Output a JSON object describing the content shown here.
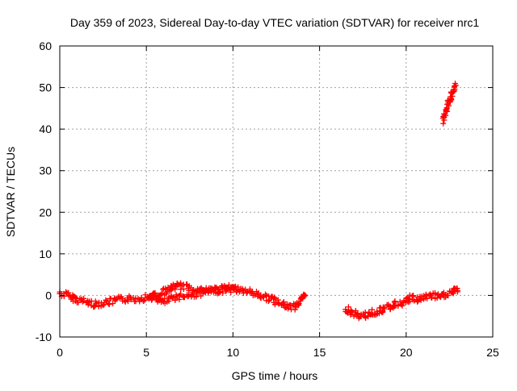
{
  "chart_data": {
    "type": "scatter",
    "title": "Day 359 of 2023, Sidereal Day-to-day VTEC variation (SDTVAR) for receiver nrc1",
    "xlabel": "GPS time / hours",
    "ylabel": "SDTVAR / TECUs",
    "xlim": [
      0,
      25
    ],
    "ylim": [
      -10,
      60
    ],
    "xticks": [
      0,
      5,
      10,
      15,
      20,
      25
    ],
    "yticks": [
      -10,
      0,
      10,
      20,
      30,
      40,
      50,
      60
    ],
    "grid": true,
    "marker": "+",
    "series": [
      {
        "name": "SDTVAR",
        "color": "#ff0000",
        "segments": [
          {
            "x": [
              0.0,
              0.5,
              1.0,
              1.5,
              2.0,
              2.5,
              3.0,
              3.5,
              4.0,
              4.5,
              5.0,
              5.5,
              5.8,
              6.2,
              6.5,
              7.0,
              7.5,
              8.0,
              8.5,
              9.0,
              9.5,
              10.0,
              10.5,
              11.0,
              11.5,
              12.0,
              12.5,
              13.0,
              13.5,
              14.0,
              14.2
            ],
            "y": [
              0.5,
              0.0,
              -1.0,
              -1.5,
              -2.2,
              -1.8,
              -1.5,
              -1.0,
              -0.8,
              -0.8,
              -0.5,
              0.0,
              -1.5,
              -1.5,
              -0.5,
              -0.2,
              0.0,
              0.5,
              0.8,
              1.2,
              1.3,
              1.5,
              1.2,
              0.8,
              0.0,
              -0.5,
              -1.5,
              -2.5,
              -2.8,
              -1.0,
              0.0
            ]
          },
          {
            "x": [
              5.2,
              5.8,
              6.3,
              6.8,
              7.3,
              7.8,
              8.3,
              8.8,
              9.3,
              9.8,
              10.3
            ],
            "y": [
              -0.5,
              0.5,
              1.5,
              2.3,
              2.0,
              1.5,
              1.2,
              1.3,
              1.5,
              1.8,
              1.5
            ]
          },
          {
            "x": [
              16.5,
              16.8,
              17.2,
              17.5,
              17.8,
              18.2,
              18.6,
              19.0,
              19.5,
              20.0,
              20.3,
              20.6,
              21.0,
              21.5,
              22.0,
              22.4,
              22.8,
              23.0
            ],
            "y": [
              -3.0,
              -4.0,
              -4.8,
              -5.0,
              -4.5,
              -4.0,
              -3.5,
              -2.8,
              -2.0,
              -1.5,
              -0.5,
              -1.0,
              -0.5,
              0.0,
              -0.5,
              0.5,
              1.0,
              1.2
            ]
          },
          {
            "x": [
              22.1,
              22.3,
              22.5,
              22.7,
              22.9
            ],
            "y": [
              42,
              44.5,
              47,
              49,
              50.5
            ]
          }
        ]
      }
    ]
  }
}
